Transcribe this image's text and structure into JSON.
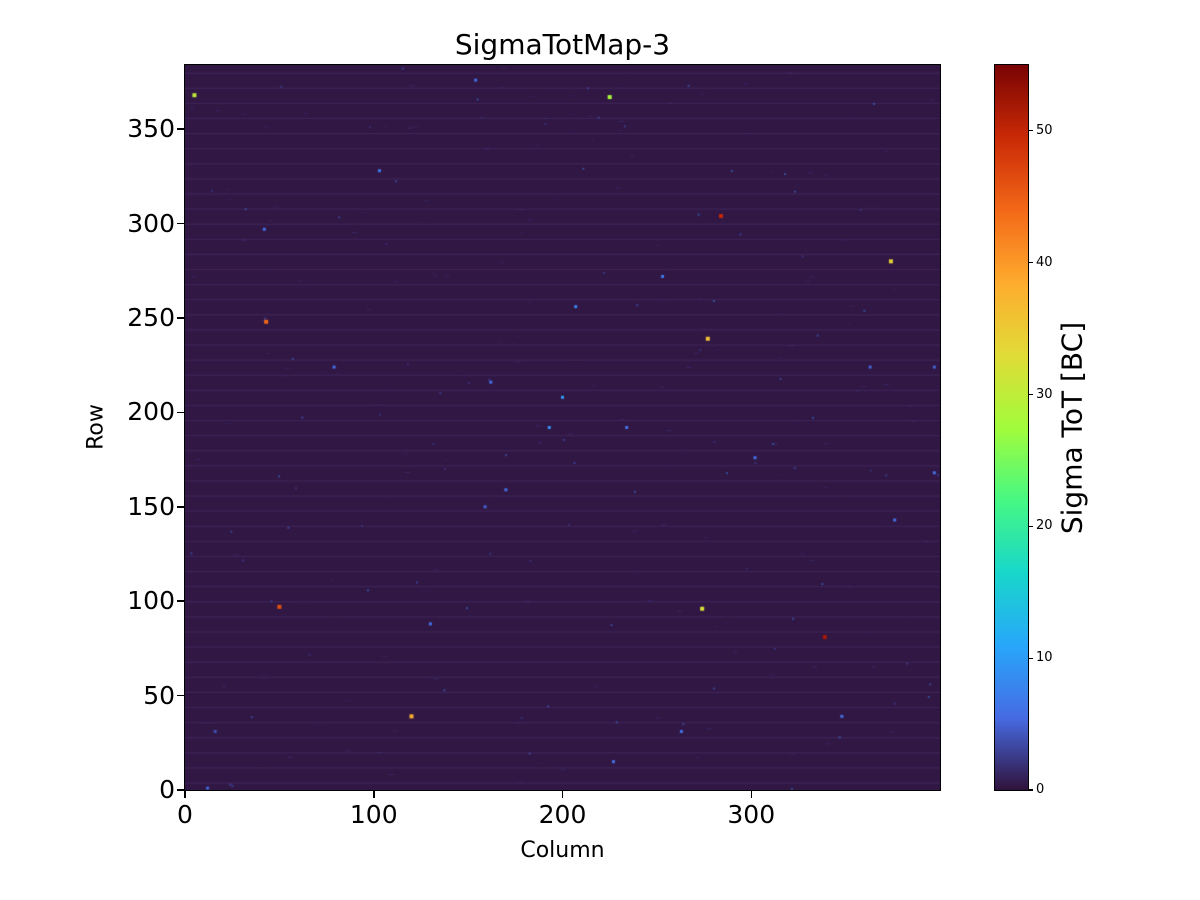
{
  "chart_data": {
    "type": "heatmap",
    "title": "SigmaTotMap-3",
    "xlabel": "Column",
    "ylabel": "Row",
    "x_range": [
      0,
      400
    ],
    "y_range": [
      0,
      384
    ],
    "x_ticks": [
      0,
      100,
      200,
      300
    ],
    "y_ticks": [
      0,
      50,
      100,
      150,
      200,
      250,
      300,
      350
    ],
    "grid": false,
    "colorbar": {
      "label": "Sigma ToT [BC]",
      "ticks": [
        0,
        10,
        20,
        30,
        40,
        50
      ],
      "vmin": 0,
      "vmax": 55
    },
    "colormap": "turbo",
    "colormap_stops": [
      [
        0.0,
        "#30123b"
      ],
      [
        0.1,
        "#466be3"
      ],
      [
        0.2,
        "#28a7fb"
      ],
      [
        0.3,
        "#18d7cb"
      ],
      [
        0.4,
        "#46f884"
      ],
      [
        0.5,
        "#a2fc3c"
      ],
      [
        0.6,
        "#e1dc37"
      ],
      [
        0.7,
        "#feac2e"
      ],
      [
        0.8,
        "#f36918"
      ],
      [
        0.9,
        "#ca2a06"
      ],
      [
        1.0,
        "#7a0403"
      ]
    ],
    "texture": {
      "base_value": 0.3,
      "stripe_interval_rows": 8,
      "stripe_color": "rgba(130,110,190,0.16)",
      "dash_count": 200,
      "dot_count": 90
    },
    "points": [
      {
        "col": 5,
        "row": 368,
        "value": 30
      },
      {
        "col": 103,
        "row": 328,
        "value": 7
      },
      {
        "col": 154,
        "row": 376,
        "value": 6
      },
      {
        "col": 225,
        "row": 367,
        "value": 28
      },
      {
        "col": 284,
        "row": 304,
        "value": 50
      },
      {
        "col": 42,
        "row": 297,
        "value": 6
      },
      {
        "col": 43,
        "row": 248,
        "value": 44
      },
      {
        "col": 79,
        "row": 224,
        "value": 6
      },
      {
        "col": 374,
        "row": 280,
        "value": 34
      },
      {
        "col": 253,
        "row": 272,
        "value": 7
      },
      {
        "col": 207,
        "row": 256,
        "value": 8
      },
      {
        "col": 277,
        "row": 239,
        "value": 36
      },
      {
        "col": 162,
        "row": 216,
        "value": 6
      },
      {
        "col": 200,
        "row": 208,
        "value": 10
      },
      {
        "col": 193,
        "row": 192,
        "value": 9
      },
      {
        "col": 234,
        "row": 192,
        "value": 6
      },
      {
        "col": 363,
        "row": 224,
        "value": 5
      },
      {
        "col": 397,
        "row": 224,
        "value": 5
      },
      {
        "col": 302,
        "row": 176,
        "value": 6
      },
      {
        "col": 397,
        "row": 168,
        "value": 6
      },
      {
        "col": 170,
        "row": 159,
        "value": 6
      },
      {
        "col": 159,
        "row": 150,
        "value": 5
      },
      {
        "col": 376,
        "row": 143,
        "value": 6
      },
      {
        "col": 50,
        "row": 97,
        "value": 46
      },
      {
        "col": 274,
        "row": 96,
        "value": 32
      },
      {
        "col": 130,
        "row": 88,
        "value": 6
      },
      {
        "col": 339,
        "row": 81,
        "value": 52
      },
      {
        "col": 120,
        "row": 39,
        "value": 38
      },
      {
        "col": 348,
        "row": 39,
        "value": 6
      },
      {
        "col": 263,
        "row": 31,
        "value": 6
      },
      {
        "col": 16,
        "row": 31,
        "value": 4
      },
      {
        "col": 227,
        "row": 15,
        "value": 6
      },
      {
        "col": 12,
        "row": 1,
        "value": 5
      }
    ]
  }
}
